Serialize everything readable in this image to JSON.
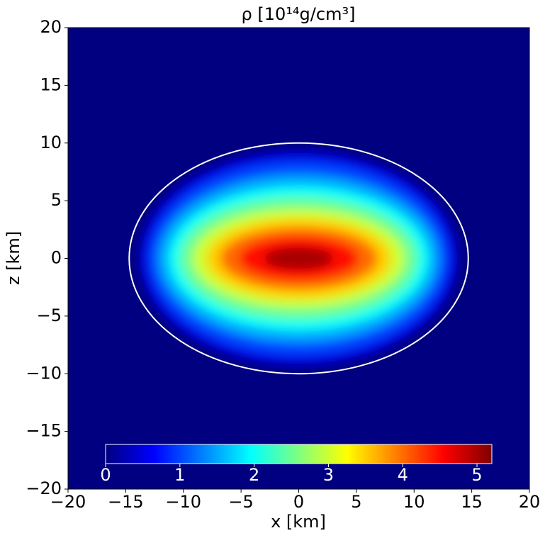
{
  "chart_data": {
    "type": "contourf",
    "title": "ρ [10¹⁴g/cm³]",
    "xlabel": "x [km]",
    "ylabel": "z [km]",
    "xlim": [
      -20,
      20
    ],
    "ylim": [
      -20,
      20
    ],
    "xticks": [
      {
        "value": -20,
        "label": "−20"
      },
      {
        "value": -15,
        "label": "−15"
      },
      {
        "value": -10,
        "label": "−10"
      },
      {
        "value": -5,
        "label": "−5"
      },
      0,
      5,
      10,
      15,
      20
    ],
    "yticks": [
      {
        "value": -20,
        "label": "−20"
      },
      {
        "value": -15,
        "label": "−15"
      },
      {
        "value": -10,
        "label": "−10"
      },
      {
        "value": -5,
        "label": "−5"
      },
      0,
      5,
      10,
      15,
      20
    ],
    "colormap": "jet",
    "contours": [
      {
        "level": 0.5,
        "a": 13.8,
        "b": 9.3
      },
      {
        "level": 1.0,
        "a": 13.0,
        "b": 8.4
      },
      {
        "level": 1.5,
        "a": 12.2,
        "b": 7.3
      },
      {
        "level": 2.0,
        "a": 11.3,
        "b": 6.3
      },
      {
        "level": 2.5,
        "a": 10.3,
        "b": 5.3
      },
      {
        "level": 3.0,
        "a": 9.2,
        "b": 4.3
      },
      {
        "level": 3.5,
        "a": 8.0,
        "b": 3.5
      },
      {
        "level": 4.0,
        "a": 6.8,
        "b": 2.7
      },
      {
        "level": 4.5,
        "a": 5.2,
        "b": 1.9
      },
      {
        "level": 5.0,
        "a": 3.0,
        "b": 1.0
      }
    ],
    "surface": {
      "a": 14.7,
      "b": 10,
      "color": "#ffffff"
    },
    "colorbar": {
      "clim": [
        0,
        5.2
      ],
      "ticks": [
        0,
        1,
        2,
        3,
        4,
        5
      ],
      "tick_color": "#ffffff"
    }
  }
}
